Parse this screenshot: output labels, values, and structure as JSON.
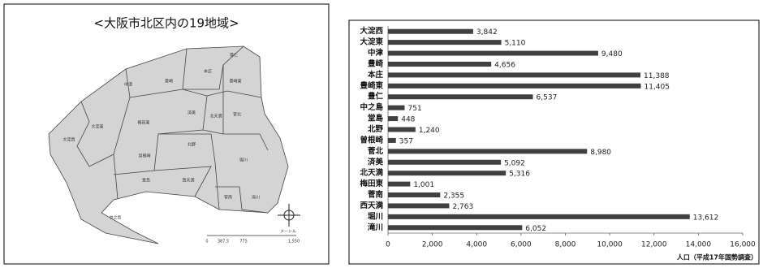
{
  "map": {
    "title": "<大阪市北区内の19地域>",
    "scale": [
      "0",
      "387.5",
      "775",
      "1,550"
    ],
    "unit": "メートル"
  },
  "chart_data": {
    "type": "bar",
    "orientation": "horizontal",
    "categories": [
      "大淀西",
      "大淀東",
      "中津",
      "豊崎",
      "本庄",
      "豊崎東",
      "豊仁",
      "中之島",
      "堂島",
      "北野",
      "曽根崎",
      "菅北",
      "済美",
      "北天満",
      "梅田東",
      "菅南",
      "西天満",
      "堀川",
      "滝川"
    ],
    "values": [
      3842,
      5110,
      9480,
      4656,
      11388,
      11405,
      6537,
      751,
      448,
      1240,
      357,
      8980,
      5092,
      5316,
      1001,
      2355,
      2763,
      13612,
      6052
    ],
    "value_labels": [
      "3,842",
      "5,110",
      "9,480",
      "4,656",
      "11,388",
      "11,405",
      "6,537",
      "751",
      "448",
      "1,240",
      "357",
      "8,980",
      "5,092",
      "5,316",
      "1,001",
      "2,355",
      "2,763",
      "13,612",
      "6,052"
    ],
    "color": "#404040",
    "x_label": "人口（平成17年国勢調査）",
    "xlim": [
      0,
      16000
    ],
    "xticks": [
      0,
      {
        "value": 2000,
        "label": "2,000"
      },
      {
        "value": 4000,
        "label": "4,000"
      },
      {
        "value": 6000,
        "label": "6,000"
      },
      {
        "value": 8000,
        "label": "8,000"
      },
      {
        "value": 10000,
        "label": "10,000"
      },
      {
        "value": 12000,
        "label": "12,000"
      },
      {
        "value": 14000,
        "label": "14,000"
      },
      {
        "value": 16000,
        "label": "16,000"
      }
    ]
  }
}
